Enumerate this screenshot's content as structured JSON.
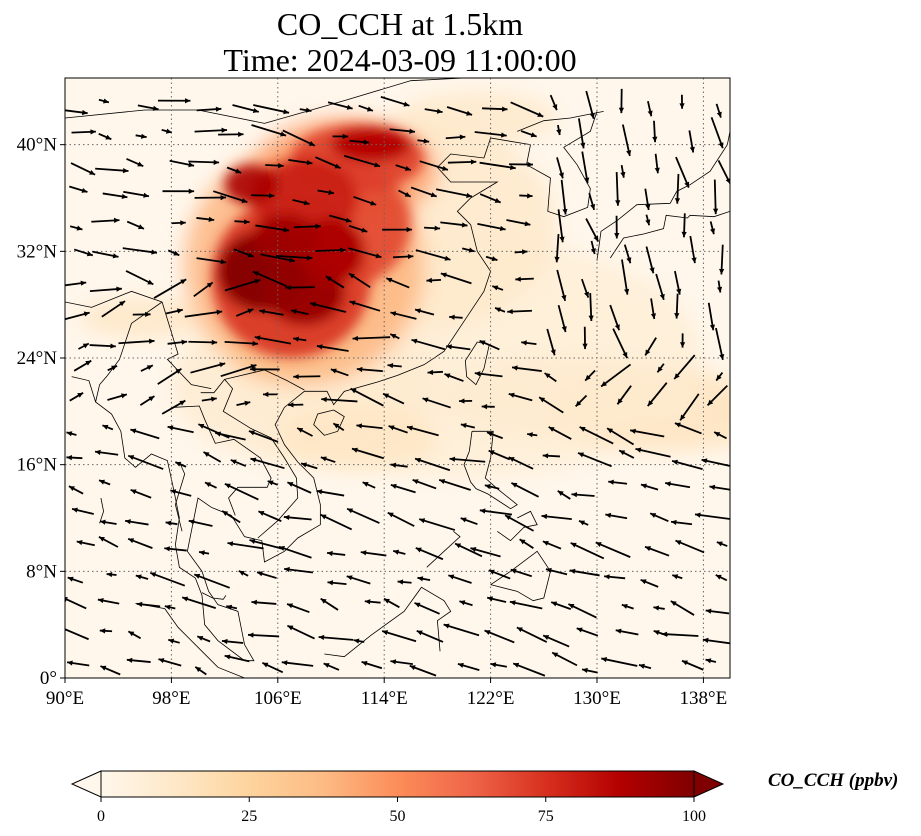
{
  "title_line1": "CO_CCH at 1.5km",
  "title_line2": "Time: 2024-03-09 11:00:00",
  "map": {
    "extent": {
      "lon_min": 90,
      "lon_max": 140,
      "lat_min": 0,
      "lat_max": 45
    },
    "lon_ticks": [
      90,
      98,
      106,
      114,
      122,
      130,
      138
    ],
    "lon_tick_labels": [
      "90°E",
      "98°E",
      "106°E",
      "114°E",
      "122°E",
      "130°E",
      "138°E"
    ],
    "lat_ticks": [
      0,
      8,
      16,
      24,
      32,
      40
    ],
    "lat_tick_labels": [
      "0°",
      "8°N",
      "16°N",
      "24°N",
      "32°N",
      "40°N"
    ],
    "gridlines": true,
    "field_name": "CO_CCH",
    "high_concentration_region": "Sichuan Basin / central-east China (approx. 102–115°E, 24–42°N)"
  },
  "colorbar": {
    "label": "CO_CCH (ppbv)",
    "min": 0,
    "max": 100,
    "ticks": [
      0,
      25,
      50,
      75,
      100
    ],
    "tick_labels": [
      "0",
      "25",
      "50",
      "75",
      "100"
    ],
    "colormap": "OrRd",
    "colors": [
      "#fff7ec",
      "#fee8c8",
      "#fdd49e",
      "#fdbb84",
      "#fc8d59",
      "#ef6548",
      "#d7301f",
      "#b30000",
      "#7f0000"
    ],
    "extend": "both"
  },
  "colors": {
    "coastline": "#000000",
    "grid": "#666666",
    "wind_vector": "#000000"
  }
}
